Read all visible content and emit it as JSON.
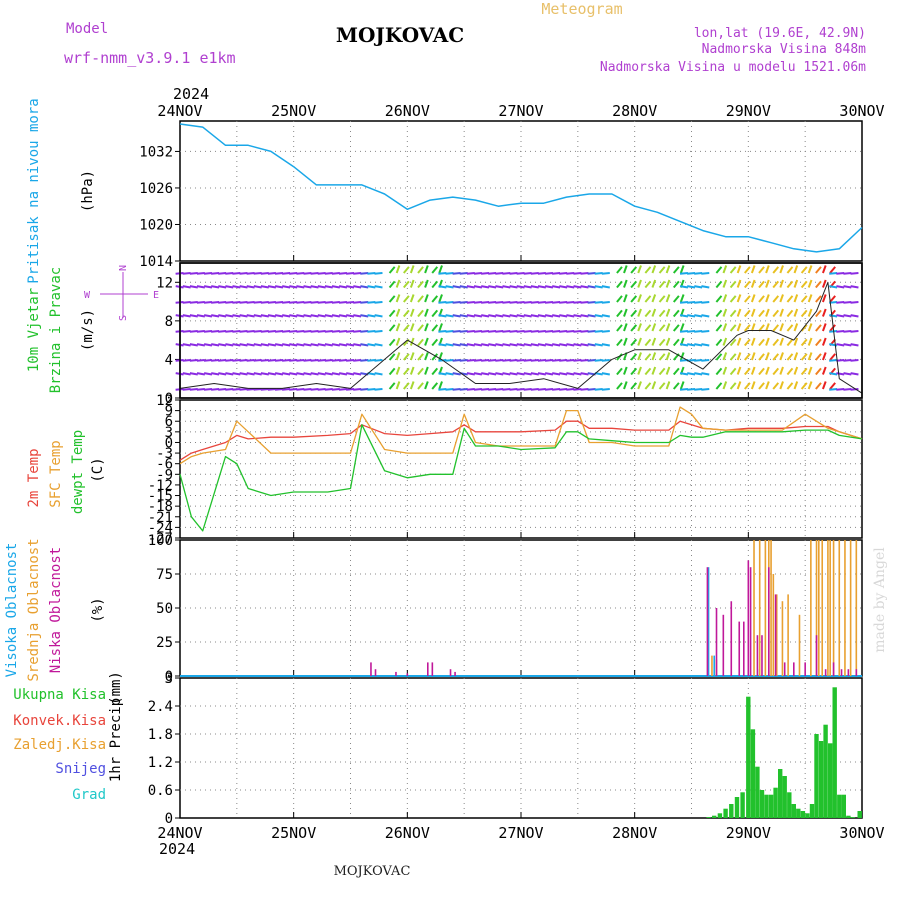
{
  "header": {
    "model_label": "Model",
    "model_name": "wrf-nmm_v3.9.1 e1km",
    "station": "MOJKOVAC",
    "product": "Meteogram",
    "lonlat": "lon,lat (19.6E, 42.9N)",
    "elevation": "Nadmorska Visina 848m",
    "model_elevation": "Nadmorska Visina u modelu 1521.06m",
    "year_top": "2024",
    "year_bottom": "2024",
    "footer_station": "MOJKOVAC",
    "credit": "made by Angel"
  },
  "colors": {
    "pressure": "#1aa7e8",
    "temp2m": "#e8453c",
    "sfc": "#e8a030",
    "dew": "#22c12c",
    "high": "#1aa7e8",
    "mid": "#e8a030",
    "low": "#c0189a",
    "total_precip": "#22c12c",
    "snow": "#5050e0",
    "hail": "#20c8c8",
    "purple_label": "#b040d0"
  },
  "days": [
    "24NOV",
    "25NOV",
    "26NOV",
    "27NOV",
    "28NOV",
    "29NOV",
    "30NOV"
  ],
  "chart_data": [
    {
      "type": "line",
      "panel": "pressure",
      "ylabel_1": "Pritisak na nivou mora",
      "ylabel_2": "(hPa)",
      "ylim": [
        1014,
        1037
      ],
      "yticks": [
        "1014",
        "1020",
        "1026",
        "1032"
      ],
      "x": [
        0,
        0.2,
        0.4,
        0.6,
        0.8,
        1.0,
        1.2,
        1.4,
        1.6,
        1.8,
        2.0,
        2.2,
        2.4,
        2.6,
        2.8,
        3.0,
        3.2,
        3.4,
        3.6,
        3.8,
        4.0,
        4.2,
        4.4,
        4.6,
        4.8,
        5.0,
        5.2,
        5.4,
        5.6,
        5.8,
        6.0
      ],
      "series": [
        {
          "name": "",
          "values": [
            1036.5,
            1036,
            1033,
            1033,
            1032,
            1029.5,
            1026.5,
            1026.5,
            1026.5,
            1025,
            1022.5,
            1024,
            1024.5,
            1024,
            1023,
            1023.5,
            1023.5,
            1024.5,
            1025,
            1025,
            1023,
            1022,
            1020.5,
            1019,
            1018,
            1018,
            1017,
            1016,
            1015.5,
            1016,
            1019.5
          ]
        }
      ]
    },
    {
      "type": "line",
      "panel": "wind",
      "ylabel_1": "10m Vjetar",
      "ylabel_2": "Brzina i Pravac",
      "ylabel_3": "(m/s)",
      "compass": {
        "w": "W",
        "e": "E",
        "n": "N",
        "s": "S"
      },
      "ylim": [
        0,
        14
      ],
      "yticks": [
        "0",
        "4",
        "8",
        "12"
      ],
      "x": [
        0,
        0.3,
        0.6,
        0.9,
        1.2,
        1.5,
        1.8,
        2.0,
        2.3,
        2.6,
        2.9,
        3.2,
        3.5,
        3.8,
        4.0,
        4.3,
        4.6,
        4.9,
        5.0,
        5.2,
        5.4,
        5.6,
        5.7,
        5.8,
        6.0
      ],
      "series": [
        {
          "name": "",
          "values": [
            1,
            1.5,
            1,
            1,
            1.5,
            1,
            4,
            6,
            4,
            1.5,
            1.5,
            2,
            1,
            4,
            5,
            5,
            3,
            6.5,
            7,
            7,
            6,
            9,
            12,
            2,
            0.5
          ]
        }
      ]
    },
    {
      "type": "line",
      "panel": "temperature",
      "ylabel_1": "2m Temp",
      "ylabel_2": "SFC Temp",
      "ylabel_3": "dewpt Temp",
      "ylabel_4": "(C)",
      "ylim": [
        -27,
        12
      ],
      "yticks": [
        "12",
        "9",
        "6",
        "3",
        "0",
        "-3",
        "-6",
        "-9",
        "-12",
        "-15",
        "-18",
        "-21",
        "-24",
        "-27"
      ],
      "x": [
        0,
        0.1,
        0.2,
        0.4,
        0.5,
        0.6,
        0.8,
        1.0,
        1.3,
        1.5,
        1.6,
        1.8,
        2.0,
        2.2,
        2.4,
        2.5,
        2.6,
        2.8,
        3.0,
        3.3,
        3.4,
        3.5,
        3.6,
        3.8,
        4.0,
        4.3,
        4.4,
        4.5,
        4.6,
        4.8,
        5.0,
        5.3,
        5.5,
        5.7,
        5.8,
        6.0
      ],
      "series": [
        {
          "name": "2m",
          "values": [
            -5,
            -3,
            -2,
            0,
            2,
            1,
            1.5,
            1.5,
            2,
            2.5,
            5,
            2.5,
            2,
            2.5,
            3,
            5,
            3,
            3,
            3,
            3.5,
            6,
            6,
            4,
            4,
            3.5,
            3.5,
            6,
            5,
            4,
            3.5,
            4,
            4,
            4.5,
            4.5,
            3,
            1
          ]
        },
        {
          "name": "SFC",
          "values": [
            -6,
            -4,
            -3,
            -2,
            6,
            3,
            -3,
            -3,
            -3,
            -3,
            8,
            -2,
            -3,
            -3,
            -3,
            8,
            0,
            -1,
            -1,
            -1,
            9,
            9,
            0,
            0,
            -1,
            -1,
            10,
            8,
            4,
            3.5,
            3.5,
            3.5,
            8,
            4,
            3,
            1
          ]
        },
        {
          "name": "dew",
          "values": [
            -9,
            -21,
            -25,
            -4,
            -6,
            -13,
            -15,
            -14,
            -14,
            -13,
            5,
            -8,
            -10,
            -9,
            -9,
            4,
            -1,
            -1,
            -2,
            -1.5,
            3,
            3,
            1,
            0.5,
            0,
            0,
            2,
            1.5,
            1.5,
            3,
            3,
            3,
            3.5,
            3.5,
            2,
            1
          ]
        }
      ]
    },
    {
      "type": "bar",
      "panel": "clouds",
      "ylabel_1": "Visoka Oblacnost",
      "ylabel_2": "Srednja Oblacnost",
      "ylabel_3": "Niska Oblacnost",
      "ylabel_4": "(%)",
      "ylim": [
        0,
        100
      ],
      "yticks": [
        "0",
        "25",
        "50",
        "75",
        "100"
      ],
      "series": [
        {
          "name": "Visoka",
          "x": [
            4.65,
            4.7,
            5.1
          ],
          "values": [
            80,
            15,
            5
          ]
        },
        {
          "name": "Srednja",
          "x": [
            4.68,
            4.72,
            5.05,
            5.1,
            5.15,
            5.18,
            5.2,
            5.22,
            5.25,
            5.3,
            5.35,
            5.45,
            5.55,
            5.6,
            5.62,
            5.65,
            5.7,
            5.72,
            5.75,
            5.8,
            5.85,
            5.9,
            5.95
          ],
          "values": [
            15,
            12,
            100,
            100,
            100,
            100,
            100,
            75,
            60,
            55,
            60,
            45,
            100,
            100,
            100,
            100,
            100,
            100,
            100,
            100,
            100,
            100,
            100
          ]
        },
        {
          "name": "Niska",
          "x": [
            1.68,
            1.72,
            1.9,
            2.0,
            2.18,
            2.22,
            2.38,
            2.42,
            4.64,
            4.72,
            4.78,
            4.85,
            4.92,
            4.96,
            5.0,
            5.02,
            5.08,
            5.12,
            5.18,
            5.24,
            5.32,
            5.4,
            5.5,
            5.6,
            5.68,
            5.75,
            5.82,
            5.88,
            5.95
          ],
          "values": [
            10,
            5,
            3,
            2,
            10,
            10,
            5,
            3,
            80,
            50,
            45,
            55,
            40,
            40,
            85,
            80,
            30,
            30,
            80,
            60,
            10,
            10,
            10,
            30,
            5,
            10,
            5,
            5,
            5
          ]
        }
      ]
    },
    {
      "type": "bar",
      "panel": "precip",
      "ylabel_1": "1hr Precip",
      "ylabel_2": "(mm)",
      "legend": [
        "Ukupna Kisa",
        "Konvek.Kisa",
        "Zaledj.Kisa",
        "Snijeg",
        "Grad"
      ],
      "ylim": [
        0,
        3
      ],
      "yticks": [
        "0",
        "0.6",
        "1.2",
        "1.8",
        "2.4",
        "3"
      ],
      "x": [
        4.65,
        4.7,
        4.75,
        4.8,
        4.85,
        4.9,
        4.95,
        5.0,
        5.04,
        5.08,
        5.12,
        5.16,
        5.2,
        5.24,
        5.28,
        5.32,
        5.36,
        5.4,
        5.44,
        5.48,
        5.52,
        5.56,
        5.6,
        5.64,
        5.68,
        5.72,
        5.76,
        5.8,
        5.84,
        5.88,
        5.92,
        5.98
      ],
      "values": [
        0.02,
        0.05,
        0.1,
        0.2,
        0.3,
        0.45,
        0.55,
        2.6,
        1.9,
        1.1,
        0.6,
        0.5,
        0.5,
        0.65,
        1.05,
        0.9,
        0.55,
        0.3,
        0.2,
        0.15,
        0.1,
        0.3,
        1.8,
        1.65,
        2.0,
        1.6,
        2.8,
        0.5,
        0.5,
        0.05,
        0.02,
        0.15
      ]
    }
  ]
}
